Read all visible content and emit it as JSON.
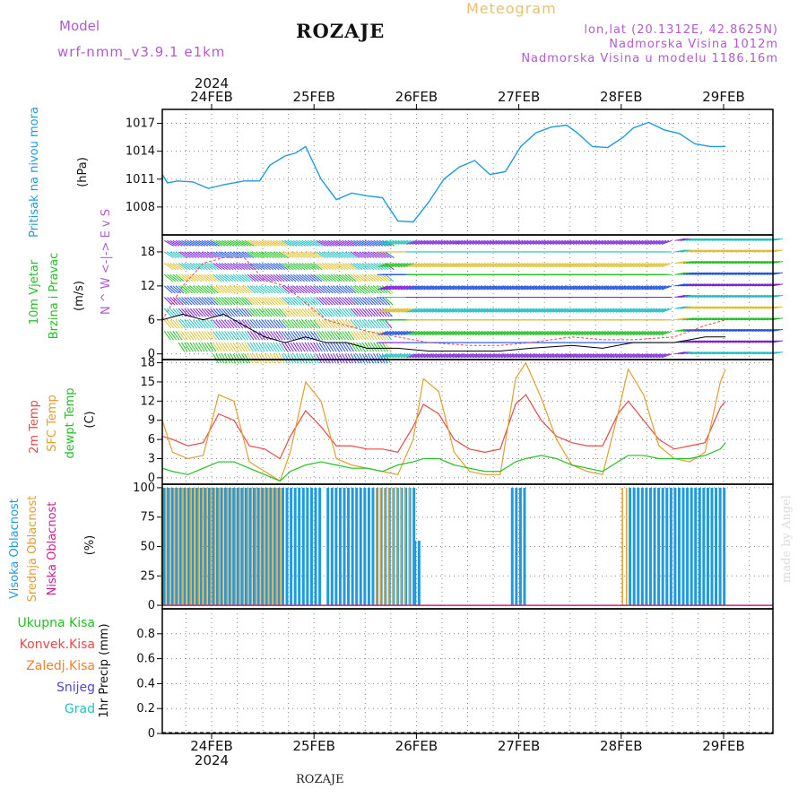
{
  "header": {
    "model_label": "Model",
    "model_run": "wrf-nmm_v3.9.1  e1km",
    "station": "ROZAJE",
    "title": "Meteogram",
    "coords": "lon,lat (20.1312E, 42.8625N)",
    "elevation": "Nadmorska Visina 1012m",
    "model_elevation": "Nadmorska Visina u modelu 1186.16m"
  },
  "footer": {
    "station": "ROZAJE",
    "credit": "made by Angel"
  },
  "axis": {
    "year": "2024",
    "dates": [
      "24FEB",
      "25FEB",
      "26FEB",
      "27FEB",
      "28FEB",
      "29FEB"
    ]
  },
  "colors": {
    "pressure": "#1e9be0",
    "t2m": "#e84a4a",
    "sfc": "#e0a030",
    "dewpt": "#22c022",
    "high_cloud": "#1e9be0",
    "mid_cloud": "#e0a030",
    "low_cloud": "#d0208a",
    "wind_label": "#22c022",
    "compass": "#b05bd0"
  },
  "panels": {
    "pressure": {
      "title": "Pritisak na nivou mora",
      "unit": "(hPa)"
    },
    "wind": {
      "title1": "10m Vjetar",
      "title2": "Brzina i Pravac",
      "unit": "(m/s)",
      "compass": "N ^ W <-|-> E v S"
    },
    "temp": {
      "t2m": "2m Temp",
      "sfc": "SFC Temp",
      "dew": "dewpt Temp",
      "unit": "(C)"
    },
    "cloud": {
      "high": "Visoka Oblacnost",
      "mid": "Srednja Oblacnost",
      "low": "Niska Oblacnost",
      "unit": "(%)"
    },
    "precip": {
      "unit": "1hr Precip (mm)",
      "legend": [
        {
          "label": "Ukupna Kisa",
          "color": "#22c022"
        },
        {
          "label": "Konvek.Kisa",
          "color": "#e84a4a"
        },
        {
          "label": "Zaledj.Kisa",
          "color": "#f08030"
        },
        {
          "label": "Snijeg",
          "color": "#4a4ad8"
        },
        {
          "label": "Grad",
          "color": "#22c0c0"
        }
      ]
    }
  },
  "chart_data": [
    {
      "type": "line",
      "name": "pressure",
      "ylabel": "(hPa)",
      "ylim": [
        1005,
        1018.5
      ],
      "yticks": [
        1008,
        1011,
        1014,
        1017
      ],
      "x_days": [
        0,
        0.05,
        0.15,
        0.3,
        0.45,
        0.6,
        0.8,
        0.95,
        1.05,
        1.2,
        1.3,
        1.4,
        1.55,
        1.7,
        1.85,
        2.0,
        2.15,
        2.3,
        2.45,
        2.6,
        2.75,
        2.9,
        3.05,
        3.2,
        3.35,
        3.5,
        3.65,
        3.8,
        3.95,
        4.05,
        4.2,
        4.35,
        4.5,
        4.6,
        4.75,
        4.9,
        5.05,
        5.2,
        5.35,
        5.5
      ],
      "series": [
        {
          "values": [
            1011.5,
            1010.6,
            1010.8,
            1010.7,
            1010.0,
            1010.4,
            1010.8,
            1010.8,
            1012.5,
            1013.5,
            1013.8,
            1014.5,
            1011.0,
            1008.8,
            1009.5,
            1009.2,
            1009.0,
            1006.5,
            1006.4,
            1008.5,
            1011.0,
            1012.3,
            1013.0,
            1011.5,
            1011.8,
            1014.5,
            1016.0,
            1016.6,
            1016.8,
            1016.0,
            1014.5,
            1014.4,
            1015.5,
            1016.5,
            1017.1,
            1016.3,
            1015.9,
            1014.8,
            1014.5,
            1014.5
          ]
        }
      ]
    },
    {
      "type": "line",
      "name": "wind",
      "ylabel": "(m/s)",
      "ylim": [
        -1,
        21
      ],
      "yticks": [
        0,
        6,
        12,
        18
      ],
      "x_days": [
        0,
        0.2,
        0.4,
        0.6,
        0.8,
        1.0,
        1.2,
        1.4,
        1.6,
        1.8,
        2.0,
        2.3,
        2.6,
        3.0,
        3.3,
        3.6,
        4.0,
        4.3,
        4.6,
        5.0,
        5.3,
        5.5
      ],
      "series": [
        {
          "name": "gust",
          "values": [
            6,
            12,
            16,
            17,
            17,
            13,
            12,
            9,
            6,
            5,
            4,
            3,
            2,
            1.5,
            1.5,
            2,
            3,
            2.5,
            2.5,
            3,
            5,
            6
          ]
        },
        {
          "name": "speed",
          "values": [
            6,
            7,
            6,
            7,
            5,
            3,
            2,
            3,
            2,
            2,
            1,
            1,
            0.5,
            0.5,
            0.5,
            1,
            1.5,
            1,
            2,
            2,
            3,
            3
          ]
        }
      ]
    },
    {
      "type": "line",
      "name": "temperature",
      "ylabel": "(C)",
      "ylim": [
        -1,
        18.5
      ],
      "yticks": [
        0,
        3,
        6,
        9,
        12,
        15,
        18
      ],
      "x_days": [
        0,
        0.1,
        0.25,
        0.4,
        0.55,
        0.7,
        0.85,
        1.0,
        1.15,
        1.25,
        1.4,
        1.55,
        1.7,
        1.85,
        2.0,
        2.15,
        2.3,
        2.45,
        2.55,
        2.7,
        2.85,
        3.0,
        3.15,
        3.3,
        3.45,
        3.55,
        3.7,
        3.85,
        4.0,
        4.15,
        4.3,
        4.45,
        4.55,
        4.7,
        4.85,
        5.0,
        5.15,
        5.3,
        5.45,
        5.5
      ],
      "series": [
        {
          "name": "t2m",
          "values": [
            6.5,
            6.0,
            5.0,
            5.5,
            10.0,
            9.0,
            5.0,
            4.5,
            3.0,
            6.5,
            10.5,
            8.0,
            5.0,
            5.0,
            4.5,
            4.5,
            4.0,
            8.0,
            11.5,
            10.0,
            6.0,
            4.5,
            4.0,
            4.5,
            11.5,
            13.0,
            9.0,
            6.5,
            5.5,
            5.0,
            5.0,
            10.0,
            12.0,
            9.0,
            6.0,
            4.5,
            5.0,
            5.5,
            11.0,
            12.0
          ]
        },
        {
          "name": "sfc",
          "values": [
            9.0,
            4.0,
            3.0,
            3.5,
            13.0,
            12.0,
            2.5,
            1.0,
            -0.5,
            4.0,
            15.0,
            12.0,
            3.0,
            2.0,
            1.5,
            1.0,
            0.5,
            6.0,
            15.5,
            13.5,
            4.0,
            1.0,
            0.5,
            0.5,
            15.5,
            18.0,
            12.5,
            6.0,
            2.0,
            1.0,
            0.5,
            10.0,
            17.0,
            13.0,
            5.0,
            3.0,
            2.5,
            4.0,
            15.0,
            17.0
          ]
        },
        {
          "name": "dewpt",
          "values": [
            1.5,
            1.0,
            0.5,
            1.5,
            2.5,
            2.5,
            1.5,
            0.5,
            -0.5,
            1.0,
            2.0,
            2.5,
            2.0,
            1.5,
            1.5,
            1.0,
            2.0,
            2.5,
            3.0,
            3.0,
            2.0,
            1.5,
            1.0,
            1.0,
            2.5,
            3.0,
            3.5,
            3.0,
            2.0,
            1.5,
            1.0,
            2.5,
            3.5,
            3.5,
            3.0,
            3.0,
            3.0,
            3.5,
            4.5,
            5.5
          ]
        }
      ]
    },
    {
      "type": "bar",
      "name": "cloud_cover",
      "ylabel": "(%)",
      "ylim": [
        -3,
        103
      ],
      "yticks": [
        0,
        25,
        50,
        75,
        100
      ],
      "periods_days": [
        {
          "layer": "high",
          "start": 0,
          "end": 1.55,
          "value": 100
        },
        {
          "layer": "mid",
          "start": 0,
          "end": 1.2,
          "value": 100
        },
        {
          "layer": "high",
          "start": 1.6,
          "end": 2.45,
          "value": 100
        },
        {
          "layer": "mid",
          "start": 2.1,
          "end": 2.45,
          "value": 100
        },
        {
          "layer": "high",
          "start": 2.45,
          "end": 2.5,
          "value": 55
        },
        {
          "layer": "high",
          "start": 3.4,
          "end": 3.55,
          "value": 100
        },
        {
          "layer": "mid",
          "start": 4.5,
          "end": 5.5,
          "value": 100
        },
        {
          "layer": "high",
          "start": 4.55,
          "end": 5.5,
          "value": 100
        }
      ]
    },
    {
      "type": "line",
      "name": "precipitation",
      "ylabel": "1hr Precip (mm)",
      "ylim": [
        0,
        1.0
      ],
      "yticks": [
        0,
        0.2,
        0.4,
        0.6,
        0.8
      ],
      "series": [
        {
          "name": "Ukupna Kisa",
          "values": [
            0,
            0
          ]
        }
      ]
    }
  ]
}
